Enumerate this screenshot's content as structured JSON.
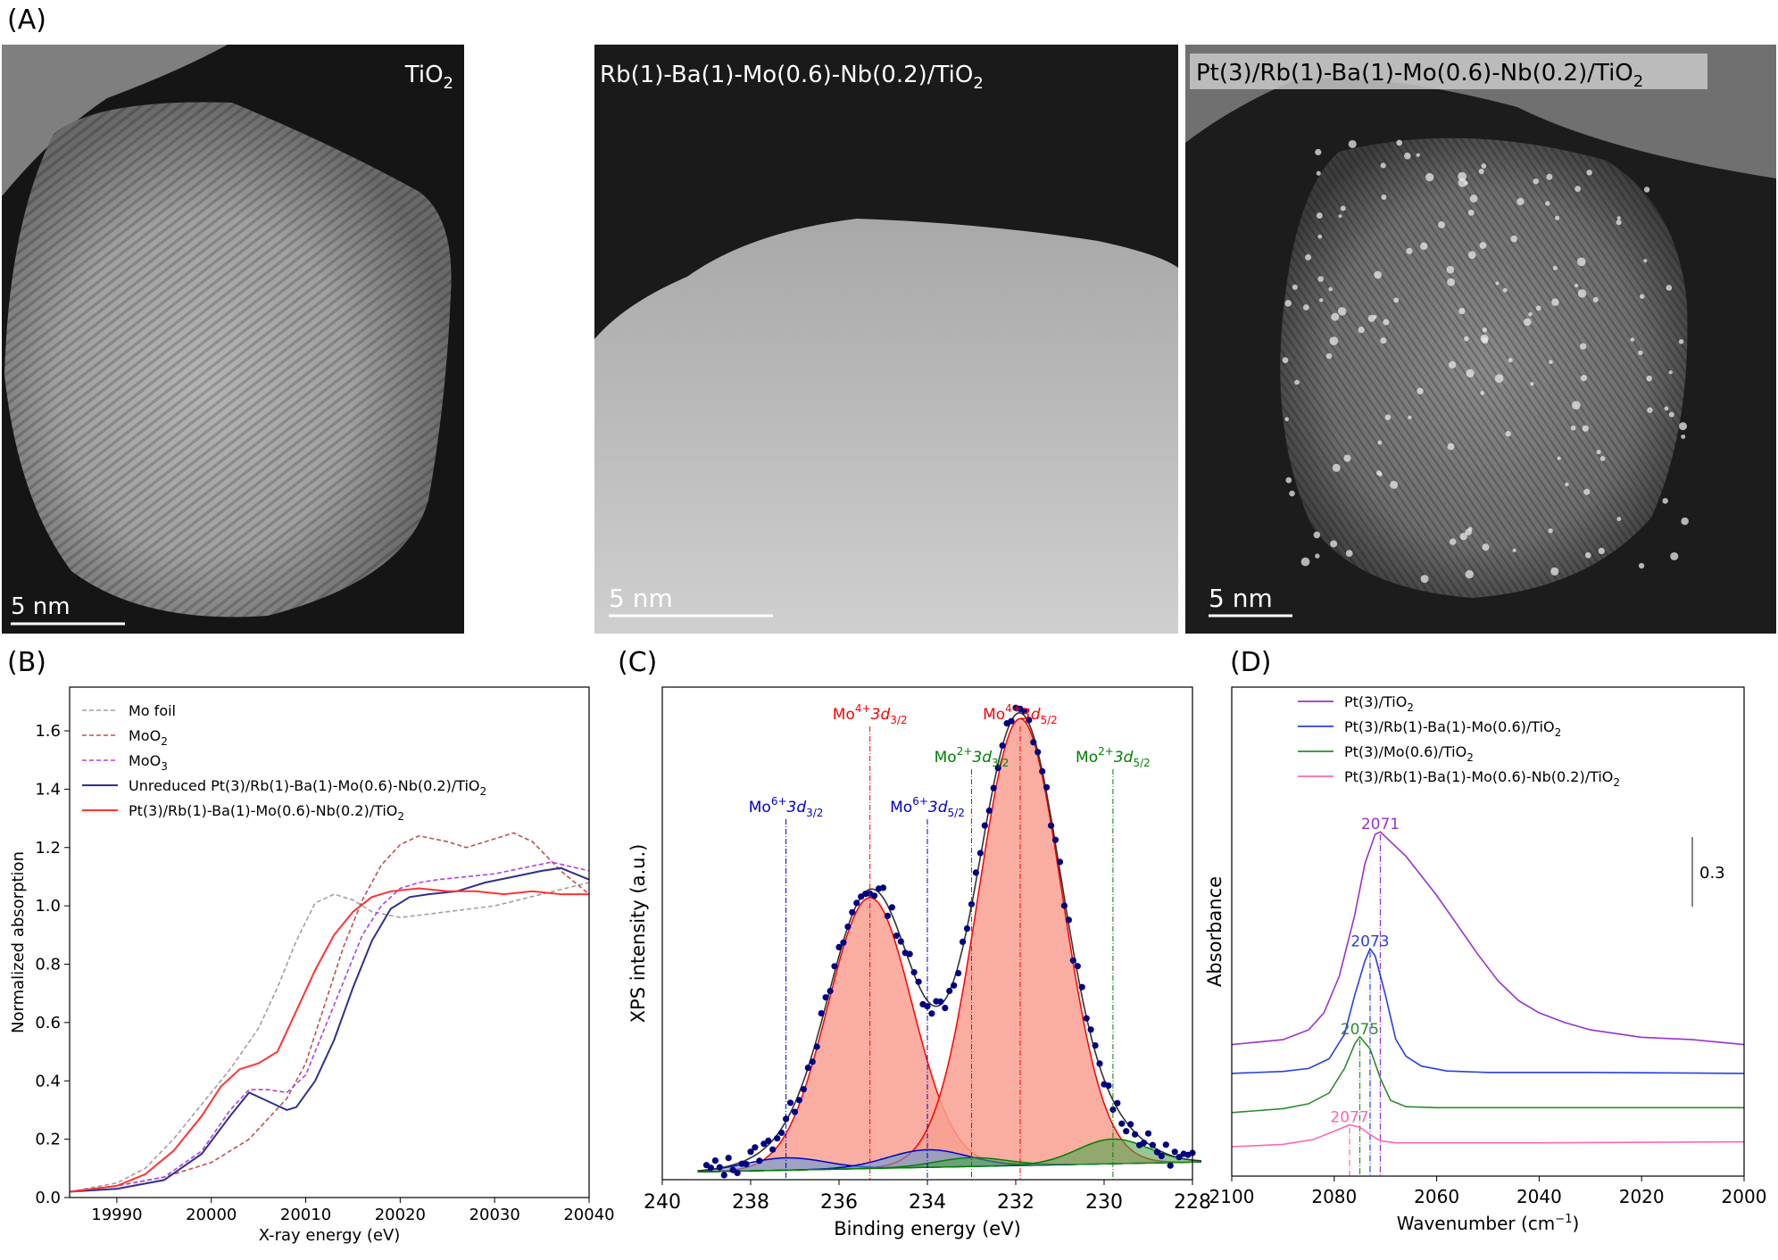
{
  "panel_labels": {
    "a": "(A)",
    "b": "(B)",
    "c": "(C)",
    "d": "(D)"
  },
  "micrographs": [
    {
      "label_main": "TiO",
      "label_sub": "2",
      "scale_bar": "5 nm"
    },
    {
      "label_main": "Rb(1)-Ba(1)-Mo(0.6)-Nb(0.2)/TiO",
      "label_sub": "2",
      "scale_bar": "5 nm"
    },
    {
      "label_main": "Pt(3)/Rb(1)-Ba(1)-Mo(0.6)-Nb(0.2)/TiO",
      "label_sub": "2",
      "scale_bar": "5 nm"
    }
  ],
  "colors": {
    "mo_foil": "#a0a0a0",
    "moo2": "#c0504d",
    "moo3": "#b040e0",
    "unreduced": "#2f2f8f",
    "reduced": "#ff3333",
    "mo4": "#ff0000",
    "mo6": "#0000cc",
    "mo2": "#008000",
    "d_pt_tio2": "#9932cc",
    "d_rbba": "#2a3fdc",
    "d_mo": "#2e8b2e",
    "d_nb": "#ff66b2",
    "xps_points": "#000080",
    "fill_mo4": "#f8a090"
  },
  "chart_data": [
    {
      "id": "B",
      "type": "line",
      "xlabel": "X-ray energy (eV)",
      "ylabel": "Normalized absorption",
      "xlim": [
        19985,
        20040
      ],
      "ylim": [
        0.0,
        1.75
      ],
      "xticks": [
        "19990",
        "20000",
        "20010",
        "20020",
        "20030",
        "20040"
      ],
      "yticks": [
        "0.0",
        "0.2",
        "0.4",
        "0.6",
        "0.8",
        "1.0",
        "1.2",
        "1.4",
        "1.6"
      ],
      "legend_position": "top-left",
      "series": [
        {
          "name": "Mo foil",
          "style": "dashed",
          "color_key": "mo_foil",
          "points": [
            [
              19985,
              0.02
            ],
            [
              19990,
              0.05
            ],
            [
              19993,
              0.1
            ],
            [
              19996,
              0.2
            ],
            [
              19999,
              0.32
            ],
            [
              20002,
              0.44
            ],
            [
              20005,
              0.58
            ],
            [
              20007,
              0.72
            ],
            [
              20009,
              0.88
            ],
            [
              20011,
              1.01
            ],
            [
              20013,
              1.04
            ],
            [
              20015,
              1.02
            ],
            [
              20017,
              0.98
            ],
            [
              20020,
              0.96
            ],
            [
              20025,
              0.98
            ],
            [
              20030,
              1.0
            ],
            [
              20035,
              1.04
            ],
            [
              20040,
              1.08
            ]
          ]
        },
        {
          "name": "MoO",
          "sub": "2",
          "style": "dashed",
          "color_key": "moo2",
          "points": [
            [
              19985,
              0.02
            ],
            [
              19990,
              0.04
            ],
            [
              19995,
              0.07
            ],
            [
              20000,
              0.12
            ],
            [
              20004,
              0.2
            ],
            [
              20008,
              0.34
            ],
            [
              20010,
              0.46
            ],
            [
              20012,
              0.66
            ],
            [
              20014,
              0.86
            ],
            [
              20016,
              1.02
            ],
            [
              20018,
              1.14
            ],
            [
              20020,
              1.21
            ],
            [
              20022,
              1.24
            ],
            [
              20025,
              1.22
            ],
            [
              20027,
              1.2
            ],
            [
              20030,
              1.23
            ],
            [
              20032,
              1.25
            ],
            [
              20034,
              1.22
            ],
            [
              20037,
              1.12
            ],
            [
              20040,
              1.04
            ]
          ]
        },
        {
          "name": "MoO",
          "sub": "3",
          "style": "dashed",
          "color_key": "moo3",
          "points": [
            [
              19985,
              0.02
            ],
            [
              19990,
              0.04
            ],
            [
              19995,
              0.07
            ],
            [
              19999,
              0.16
            ],
            [
              20002,
              0.3
            ],
            [
              20004,
              0.37
            ],
            [
              20006,
              0.37
            ],
            [
              20008,
              0.36
            ],
            [
              20010,
              0.42
            ],
            [
              20012,
              0.58
            ],
            [
              20014,
              0.74
            ],
            [
              20016,
              0.9
            ],
            [
              20018,
              1.0
            ],
            [
              20020,
              1.06
            ],
            [
              20022,
              1.08
            ],
            [
              20024,
              1.09
            ],
            [
              20027,
              1.1
            ],
            [
              20030,
              1.11
            ],
            [
              20033,
              1.13
            ],
            [
              20036,
              1.15
            ],
            [
              20040,
              1.12
            ]
          ]
        },
        {
          "name": "Unreduced Pt(3)/Rb(1)-Ba(1)-Mo(0.6)-Nb(0.2)/TiO",
          "sub": "2",
          "style": "solid",
          "color_key": "unreduced",
          "points": [
            [
              19985,
              0.02
            ],
            [
              19990,
              0.03
            ],
            [
              19995,
              0.06
            ],
            [
              19999,
              0.15
            ],
            [
              20002,
              0.28
            ],
            [
              20004,
              0.36
            ],
            [
              20006,
              0.33
            ],
            [
              20008,
              0.3
            ],
            [
              20009,
              0.31
            ],
            [
              20011,
              0.4
            ],
            [
              20013,
              0.54
            ],
            [
              20015,
              0.72
            ],
            [
              20017,
              0.88
            ],
            [
              20019,
              0.99
            ],
            [
              20021,
              1.03
            ],
            [
              20023,
              1.04
            ],
            [
              20026,
              1.05
            ],
            [
              20029,
              1.08
            ],
            [
              20032,
              1.1
            ],
            [
              20035,
              1.12
            ],
            [
              20037,
              1.13
            ],
            [
              20040,
              1.09
            ]
          ]
        },
        {
          "name": "Pt(3)/Rb(1)-Ba(1)-Mo(0.6)-Nb(0.2)/TiO",
          "sub": "2",
          "style": "solid",
          "color_key": "reduced",
          "points": [
            [
              19985,
              0.02
            ],
            [
              19990,
              0.04
            ],
            [
              19993,
              0.08
            ],
            [
              19996,
              0.16
            ],
            [
              19999,
              0.28
            ],
            [
              20001,
              0.38
            ],
            [
              20003,
              0.44
            ],
            [
              20005,
              0.46
            ],
            [
              20007,
              0.5
            ],
            [
              20009,
              0.64
            ],
            [
              20011,
              0.78
            ],
            [
              20013,
              0.9
            ],
            [
              20015,
              0.98
            ],
            [
              20017,
              1.03
            ],
            [
              20019,
              1.05
            ],
            [
              20022,
              1.06
            ],
            [
              20025,
              1.05
            ],
            [
              20028,
              1.05
            ],
            [
              20031,
              1.04
            ],
            [
              20034,
              1.05
            ],
            [
              20037,
              1.04
            ],
            [
              20040,
              1.04
            ]
          ]
        }
      ]
    },
    {
      "id": "C",
      "type": "xps",
      "xlabel": "Binding energy (eV)",
      "ylabel": "XPS intensity (a.u.)",
      "xlim": [
        240,
        228
      ],
      "ylim": [
        0.0,
        1.4
      ],
      "xticks": [
        "240",
        "238",
        "236",
        "234",
        "232",
        "230",
        "228"
      ],
      "peak_lines": [
        {
          "label": "Mo",
          "sup": "6+",
          "orb": "3d",
          "orb_sub": "3/2",
          "x": 237.2,
          "color_key": "mo6",
          "label_row": 3
        },
        {
          "label": "Mo",
          "sup": "4+",
          "orb": "3d",
          "orb_sub": "3/2",
          "x": 235.3,
          "color_key": "mo4",
          "label_row": 1
        },
        {
          "label": "Mo",
          "sup": "6+",
          "orb": "3d",
          "orb_sub": "5/2",
          "x": 234.0,
          "color_key": "mo6",
          "label_row": 3
        },
        {
          "label": "Mo",
          "sup": "2+",
          "orb": "3d",
          "orb_sub": "3/2",
          "x": 233.0,
          "color_key": "mo2",
          "label_row": 2
        },
        {
          "label": "Mo",
          "sup": "4+",
          "orb": "3d",
          "orb_sub": "5/2",
          "x": 231.9,
          "color_key": "mo4",
          "label_row": 1
        },
        {
          "label": "Mo",
          "sup": "2+",
          "orb": "3d",
          "orb_sub": "5/2",
          "x": 229.8,
          "color_key": "mo2",
          "label_row": 2
        }
      ],
      "components": [
        {
          "name": "Mo4+ 3d3/2",
          "center": 235.3,
          "height": 0.77,
          "sigma": 0.95,
          "color_key": "mo4"
        },
        {
          "name": "Mo4+ 3d5/2",
          "center": 231.9,
          "height": 1.27,
          "sigma": 0.95,
          "color_key": "mo4"
        },
        {
          "name": "Mo6+ 3d3/2",
          "center": 237.2,
          "height": 0.035,
          "sigma": 0.9,
          "color_key": "mo6"
        },
        {
          "name": "Mo6+ 3d5/2",
          "center": 234.0,
          "height": 0.05,
          "sigma": 0.9,
          "color_key": "mo6"
        },
        {
          "name": "Mo2+ 3d3/2",
          "center": 233.0,
          "height": 0.025,
          "sigma": 0.8,
          "color_key": "mo2"
        },
        {
          "name": "Mo2+ 3d5/2",
          "center": 229.8,
          "height": 0.07,
          "sigma": 0.8,
          "color_key": "mo2"
        }
      ],
      "baseline": {
        "start": 0.02,
        "end": 0.05
      }
    },
    {
      "id": "D",
      "type": "line",
      "xlabel": "Wavenumber (cm",
      "xlabel_sup": "−1",
      "xlabel_end": ")",
      "ylabel": "Absorbance",
      "xlim": [
        2100,
        2000
      ],
      "ylim": [
        0.0,
        1.0
      ],
      "xticks": [
        "2100",
        "2080",
        "2060",
        "2040",
        "2020",
        "2000"
      ],
      "scale_bar": "0.3",
      "legend_position": "top-center",
      "series": [
        {
          "name": "Pt(3)/TiO",
          "sub": "2",
          "color_key": "d_pt_tio2",
          "points": [
            [
              2100,
              0.269
            ],
            [
              2090,
              0.279
            ],
            [
              2085,
              0.299
            ],
            [
              2082,
              0.334
            ],
            [
              2079,
              0.409
            ],
            [
              2076,
              0.534
            ],
            [
              2074,
              0.639
            ],
            [
              2072,
              0.699
            ],
            [
              2071,
              0.704
            ],
            [
              2069,
              0.684
            ],
            [
              2066,
              0.654
            ],
            [
              2063,
              0.614
            ],
            [
              2060,
              0.574
            ],
            [
              2056,
              0.514
            ],
            [
              2052,
              0.454
            ],
            [
              2048,
              0.399
            ],
            [
              2044,
              0.359
            ],
            [
              2040,
              0.334
            ],
            [
              2035,
              0.314
            ],
            [
              2030,
              0.299
            ],
            [
              2020,
              0.284
            ],
            [
              2010,
              0.279
            ],
            [
              2000,
              0.269
            ]
          ]
        },
        {
          "name": "Pt(3)/Rb(1)-Ba(1)-Mo(0.6)/TiO",
          "sub": "2",
          "color_key": "d_rbba",
          "points": [
            [
              2100,
              0.21
            ],
            [
              2090,
              0.214
            ],
            [
              2085,
              0.22
            ],
            [
              2081,
              0.24
            ],
            [
              2078,
              0.29
            ],
            [
              2076,
              0.37
            ],
            [
              2074,
              0.44
            ],
            [
              2073,
              0.465
            ],
            [
              2072,
              0.45
            ],
            [
              2070,
              0.37
            ],
            [
              2068,
              0.28
            ],
            [
              2066,
              0.245
            ],
            [
              2063,
              0.225
            ],
            [
              2058,
              0.215
            ],
            [
              2050,
              0.212
            ],
            [
              2030,
              0.212
            ],
            [
              2000,
              0.21
            ]
          ]
        },
        {
          "name": "Pt(3)/Mo(0.6)/TiO",
          "sub": "2",
          "color_key": "d_mo",
          "points": [
            [
              2100,
              0.13
            ],
            [
              2090,
              0.138
            ],
            [
              2085,
              0.148
            ],
            [
              2081,
              0.17
            ],
            [
              2078,
              0.22
            ],
            [
              2076,
              0.27
            ],
            [
              2075,
              0.285
            ],
            [
              2073,
              0.26
            ],
            [
              2071,
              0.2
            ],
            [
              2069,
              0.155
            ],
            [
              2066,
              0.142
            ],
            [
              2060,
              0.14
            ],
            [
              2040,
              0.14
            ],
            [
              2000,
              0.14
            ]
          ]
        },
        {
          "name": "Pt(3)/Rb(1)-Ba(1)-Mo(0.6)-Nb(0.2)/TiO",
          "sub": "2",
          "color_key": "d_nb",
          "points": [
            [
              2100,
              0.06
            ],
            [
              2090,
              0.065
            ],
            [
              2084,
              0.075
            ],
            [
              2080,
              0.092
            ],
            [
              2077,
              0.105
            ],
            [
              2075,
              0.1
            ],
            [
              2073,
              0.085
            ],
            [
              2071,
              0.072
            ],
            [
              2068,
              0.068
            ],
            [
              2060,
              0.068
            ],
            [
              2040,
              0.068
            ],
            [
              2000,
              0.07
            ]
          ]
        }
      ],
      "peak_lines": [
        {
          "label": "2071",
          "x": 2071,
          "color_key": "d_pt_tio2",
          "label_y": 0.71
        },
        {
          "label": "2073",
          "x": 2073,
          "color_key": "d_rbba",
          "label_y": 0.47
        },
        {
          "label": "2075",
          "x": 2075,
          "color_key": "d_mo",
          "label_y": 0.29
        },
        {
          "label": "2077",
          "x": 2077,
          "color_key": "d_nb",
          "label_y": 0.11
        }
      ]
    }
  ]
}
